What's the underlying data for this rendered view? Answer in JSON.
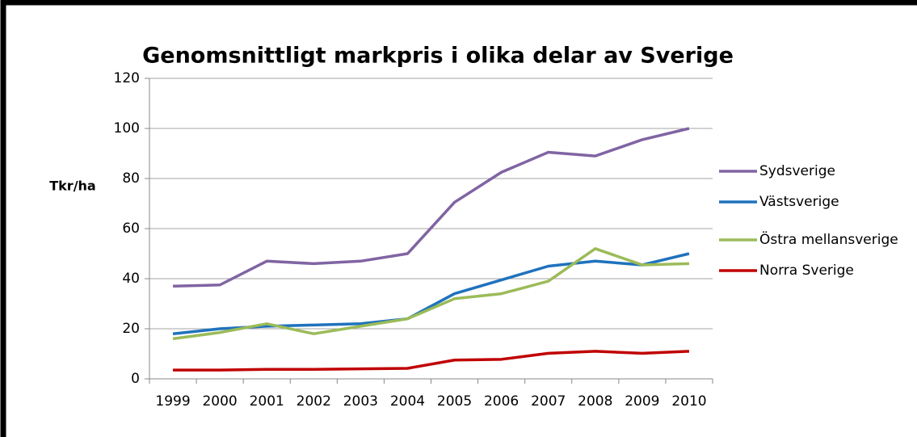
{
  "chart_data": {
    "type": "line",
    "title": "Genomsnittligt markpris i olika delar av Sverige",
    "y_label": "Tkr/ha",
    "categories": [
      "1999",
      "2000",
      "2001",
      "2002",
      "2003",
      "2004",
      "2005",
      "2006",
      "2007",
      "2008",
      "2009",
      "2010"
    ],
    "series": [
      {
        "name": "Sydsverige",
        "color": "#8064a2",
        "values": [
          37,
          37.5,
          47,
          46,
          47,
          50,
          70.5,
          82.5,
          90.5,
          89,
          95.5,
          100
        ]
      },
      {
        "name": "Västsverige",
        "color": "#1f72bd",
        "values": [
          18,
          20,
          21,
          21.5,
          22,
          24,
          34,
          39.5,
          45,
          47,
          45.5,
          50
        ]
      },
      {
        "name": "Östra mellansverige",
        "color": "#9bbb59",
        "values": [
          16,
          18.5,
          22,
          18,
          21,
          24,
          32,
          34,
          39,
          52,
          45.5,
          46
        ]
      },
      {
        "name": "Norra Sverige",
        "color": "#c00000",
        "values": [
          3.5,
          3.5,
          3.8,
          3.8,
          4,
          4.2,
          7.5,
          7.8,
          10.2,
          11,
          10.2,
          11
        ]
      }
    ],
    "ylim": [
      0,
      120
    ],
    "yticks": [
      0,
      20,
      40,
      60,
      80,
      100,
      120
    ],
    "grid": true,
    "legend": "right"
  }
}
